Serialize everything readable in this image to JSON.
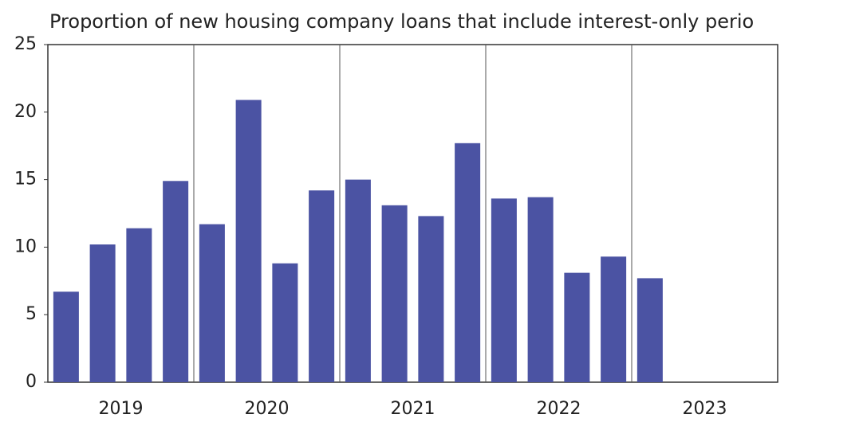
{
  "chart_data": {
    "type": "bar",
    "title": "Proportion of new housing company loans that include interest-only perio",
    "categories": [
      null,
      null,
      null,
      null,
      null,
      null,
      null,
      null,
      null,
      null,
      null,
      null,
      null,
      null,
      null,
      null,
      null,
      null,
      null,
      null
    ],
    "groups": [
      "2019",
      "2020",
      "2021",
      "2022",
      "2023"
    ],
    "values": [
      6.7,
      10.2,
      11.4,
      14.9,
      11.7,
      20.9,
      8.8,
      14.2,
      15.0,
      13.1,
      12.3,
      17.7,
      13.6,
      13.7,
      8.1,
      9.3,
      7.7,
      null,
      null,
      null
    ],
    "color": "#4b53a3",
    "ylim": [
      0,
      25
    ],
    "yticks": [
      0,
      5,
      10,
      15,
      20,
      25
    ],
    "grid": false
  }
}
